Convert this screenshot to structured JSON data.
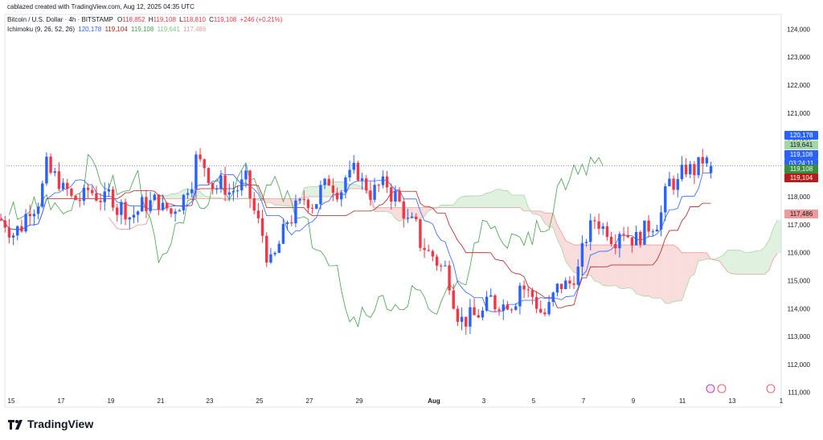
{
  "header": {
    "created_by": "cablazed created with TradingView.com, Aug 12, 2025 04:35 UTC"
  },
  "symbol": {
    "name": "Bitcoin / U.S. Dollar · 4h · BITSTAMP",
    "open_label": "O",
    "open": "118,852",
    "high_label": "H",
    "high": "119,108",
    "low_label": "L",
    "low": "118,810",
    "close_label": "C",
    "close": "119,108",
    "change": "+246 (+0.21%)"
  },
  "indicator": {
    "name": "Ichimoku (9, 26, 52, 26)",
    "values": [
      "120,178",
      "119,104",
      "119,108",
      "119,641",
      "117,486"
    ]
  },
  "price_axis": {
    "ticks": [
      "124,000",
      "123,000",
      "122,000",
      "121,000",
      "120,000",
      "119,000",
      "118,000",
      "117,000",
      "116,000",
      "115,000",
      "114,000",
      "113,000",
      "112,000",
      "111,000"
    ],
    "tags": [
      {
        "text": "120,178",
        "color": "#2962ff"
      },
      {
        "text": "119,641",
        "color": "#a5d6a7",
        "dark_text": true
      },
      {
        "text": "119,108",
        "color": "#2962ff"
      },
      {
        "text": "03:24:11",
        "color": "#2962ff"
      },
      {
        "text": "119,108",
        "color": "#388e3c"
      },
      {
        "text": "119,104",
        "color": "#b71c1c"
      },
      {
        "text": "117,486",
        "color": "#ef9a9a",
        "dark_text": true
      }
    ]
  },
  "time_axis": {
    "ticks": [
      "15",
      "17",
      "19",
      "21",
      "23",
      "25",
      "27",
      "29",
      "Aug",
      "3",
      "5",
      "7",
      "9",
      "11",
      "13",
      "1"
    ]
  },
  "brand": {
    "name": "TradingView"
  },
  "colors": {
    "up": "#2962ff",
    "down": "#f23645",
    "conversion": "#2962ff",
    "base": "#b71c1c",
    "lagging": "#43a047",
    "span_a": "#a5d6a7",
    "span_b": "#ef9a9a"
  },
  "chart_data": {
    "type": "candlestick",
    "symbol": "BTCUSD",
    "interval": "4h",
    "ylim": [
      111000,
      124000
    ],
    "x_ticks": [
      "15",
      "17",
      "19",
      "21",
      "23",
      "25",
      "27",
      "29",
      "Aug",
      "3",
      "5",
      "7",
      "9",
      "11",
      "13",
      "1"
    ],
    "daily_closes_approx": [
      {
        "date": "15",
        "close": 117000
      },
      {
        "date": "16",
        "close": 119000
      },
      {
        "date": "17",
        "close": 117900
      },
      {
        "date": "18",
        "close": 118100
      },
      {
        "date": "19",
        "close": 117600
      },
      {
        "date": "20",
        "close": 117800
      },
      {
        "date": "21",
        "close": 117400
      },
      {
        "date": "22",
        "close": 119300
      },
      {
        "date": "23",
        "close": 118400
      },
      {
        "date": "24",
        "close": 118500
      },
      {
        "date": "25",
        "close": 115500
      },
      {
        "date": "26",
        "close": 117500
      },
      {
        "date": "27",
        "close": 118200
      },
      {
        "date": "28",
        "close": 118700
      },
      {
        "date": "29",
        "close": 118200
      },
      {
        "date": "30",
        "close": 118000
      },
      {
        "date": "31",
        "close": 116400
      },
      {
        "date": "Aug",
        "close": 115400
      },
      {
        "date": "2",
        "close": 113600
      },
      {
        "date": "3",
        "close": 114200
      },
      {
        "date": "4",
        "close": 114900
      },
      {
        "date": "5",
        "close": 113800
      },
      {
        "date": "6",
        "close": 114900
      },
      {
        "date": "7",
        "close": 117200
      },
      {
        "date": "8",
        "close": 116900
      },
      {
        "date": "9",
        "close": 116700
      },
      {
        "date": "10",
        "close": 118500
      },
      {
        "date": "11",
        "close": 119000
      },
      {
        "date": "12",
        "close": 119108
      }
    ],
    "last": {
      "open": 118852,
      "high": 119108,
      "low": 118810,
      "close": 119108
    }
  }
}
